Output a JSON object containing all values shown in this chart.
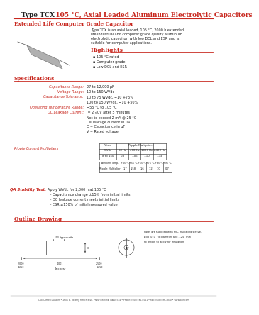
{
  "title_black": "Type TCX",
  "title_red": "  105 °C, Axial Leaded Aluminum Electrolytic Capacitors",
  "subtitle": "Extended Life Computer Grade Capacitor",
  "bg_color": "#ffffff",
  "red_color": "#c8271e",
  "dark_color": "#222222",
  "description": "Type TCX is an axial leaded, 105 °C, 2000 h extended\nlife industrial and computer grade quality aluminum\nelectrolytic capacitor  with low DCL and ESR and is\nsuitable for computer applications.",
  "highlights_title": "Highlights",
  "highlights": [
    "105 °C rated",
    "Computer grade",
    "Low DCL and ESR"
  ],
  "specs_title": "Specifications",
  "spec_rows": [
    [
      "Capacitance Range:",
      "27 to 12,000 μF"
    ],
    [
      "Voltage Range:",
      "10 to 150 WVdc"
    ],
    [
      "Capacitance Tolerance:",
      "10 to 75 WVdc, −10 +75%"
    ],
    [
      "",
      "100 to 150 WVdc, −10 +50%"
    ],
    [
      "Operating Temperature Range:",
      "−55 °C to 105 °C"
    ],
    [
      "DC Leakage Current:",
      "I= 2 √CV after 5 minutes"
    ]
  ],
  "dc_leakage_extra": [
    "Not to exceed 2 mA @ 25 °C",
    "I = leakage current in μA",
    "C = Capacitance in μF",
    "V = Rated voltage"
  ],
  "ripple_title": "Ripple Current Multipliers",
  "ripple_col_headers": [
    "WVdc",
    "60 Hz",
    "400 Hz",
    "1000 Hz",
    "2400 Hz"
  ],
  "ripple_rows": [
    [
      "8 to 150",
      "0.8",
      "1.05",
      "1.10",
      "1.14"
    ]
  ],
  "ambient_header": [
    "Ambient Temp.",
    "+45 °C",
    "+55 °C",
    "+65 °C",
    "+75 °C",
    "+85 °C",
    "+95 °C"
  ],
  "ambient_row": [
    "Ripple Multiplier",
    "1.7",
    "1.58",
    "1.6",
    "1.2",
    "1.0",
    "0.7"
  ],
  "qa_title": "QA Stability Test:",
  "qa_items": [
    "Apply WVdc for 2,000 h at 105 °C",
    "Capacitance change ±15% from initial limits",
    "DC leakage current meets initial limits",
    "ESR ≤150% of initial measured value"
  ],
  "outline_title": "Outline Drawing",
  "outline_note": "Parts are supplied with PVC insulating sleeve.\nAdd .010\" to diameter and .125\" min\nto length to allow for insulation.",
  "footer": "CDE Cornell Dubilier • 1605 E. Rodney French Blvd. •New Bedford, MA 02744 • Phone: (508)996-8561 • Fax: (508)996-3830 • www.cde.com"
}
